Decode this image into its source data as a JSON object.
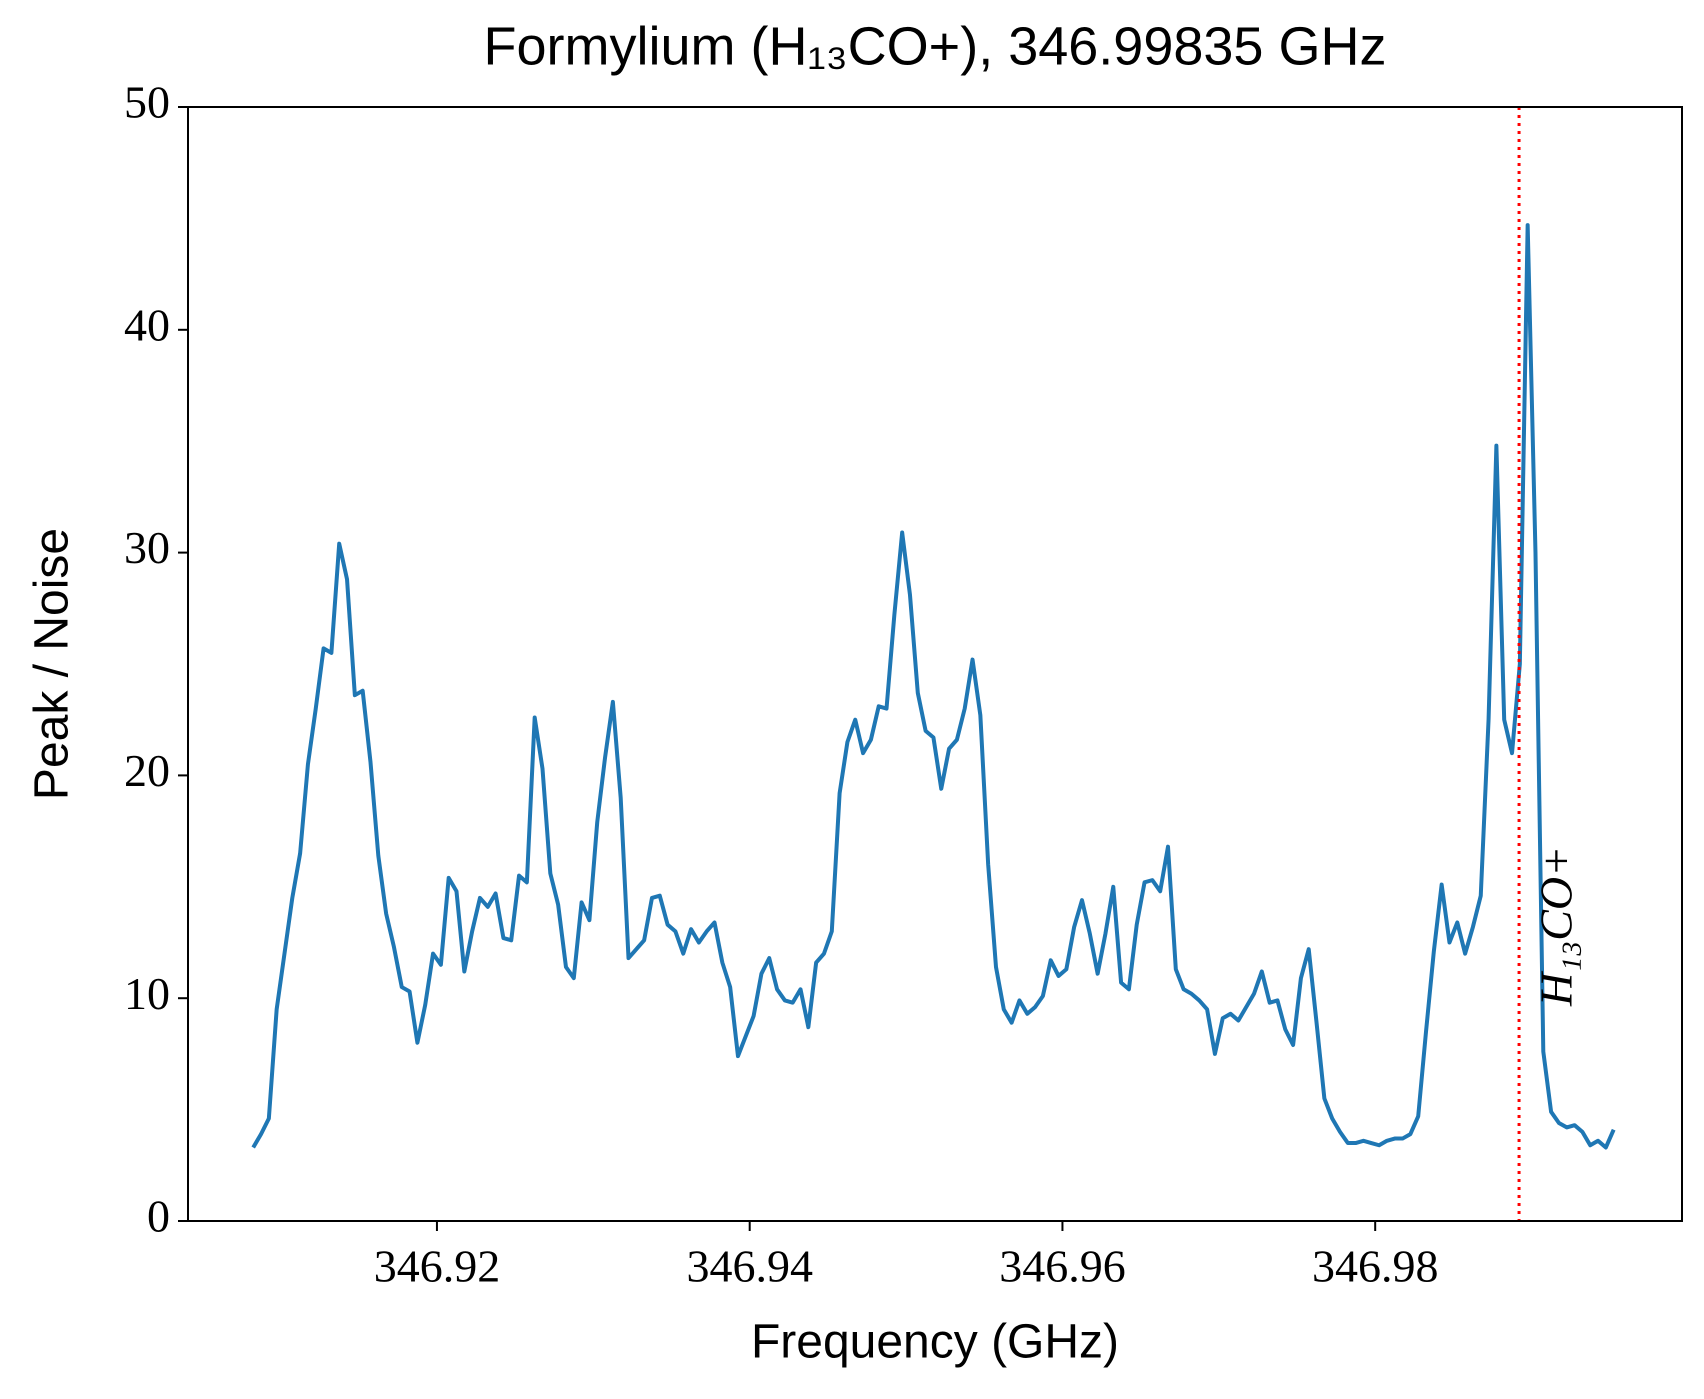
{
  "chart_data": {
    "type": "line",
    "title": "Formylium (H₁₃CO+), 346.99835 GHz",
    "xlabel": "Frequency (GHz)",
    "ylabel": "Peak / Noise",
    "color": "#1f77b4",
    "xlim": [
      346.90408,
      346.99962
    ],
    "ylim": [
      0,
      50
    ],
    "xticks": [
      346.92,
      346.94,
      346.96,
      346.98
    ],
    "yticks": [
      0,
      10,
      20,
      30,
      40,
      50
    ],
    "grid": false,
    "annotation": {
      "text": "H₁₃CO+",
      "x": 346.9892,
      "color": "#ff0000"
    },
    "x": [
      346.90825,
      346.90875,
      346.90925,
      346.90975,
      346.91025,
      346.91075,
      346.91125,
      346.91175,
      346.91225,
      346.91275,
      346.91325,
      346.91375,
      346.91425,
      346.91475,
      346.91525,
      346.91575,
      346.91625,
      346.91675,
      346.91725,
      346.91775,
      346.91825,
      346.91875,
      346.91925,
      346.91975,
      346.92025,
      346.92075,
      346.92125,
      346.92175,
      346.92225,
      346.92275,
      346.92325,
      346.92375,
      346.92425,
      346.92475,
      346.92525,
      346.92575,
      346.92625,
      346.92675,
      346.92725,
      346.92775,
      346.92825,
      346.92875,
      346.92925,
      346.92975,
      346.93025,
      346.93075,
      346.93125,
      346.93175,
      346.93225,
      346.93275,
      346.93325,
      346.93375,
      346.93425,
      346.93475,
      346.93525,
      346.93575,
      346.93625,
      346.93675,
      346.93725,
      346.93775,
      346.93825,
      346.93875,
      346.93925,
      346.93975,
      346.94025,
      346.94075,
      346.94125,
      346.94175,
      346.94225,
      346.94275,
      346.94325,
      346.94375,
      346.94425,
      346.94475,
      346.94525,
      346.94575,
      346.94625,
      346.94675,
      346.94725,
      346.94775,
      346.94825,
      346.94875,
      346.94925,
      346.94975,
      346.95025,
      346.95075,
      346.95125,
      346.95175,
      346.95225,
      346.95275,
      346.95325,
      346.95375,
      346.95425,
      346.95475,
      346.95525,
      346.95575,
      346.95625,
      346.95675,
      346.95725,
      346.95775,
      346.95825,
      346.95875,
      346.95925,
      346.95975,
      346.96025,
      346.96075,
      346.96125,
      346.96175,
      346.96225,
      346.96275,
      346.96325,
      346.96375,
      346.96425,
      346.96475,
      346.96525,
      346.96575,
      346.96625,
      346.96675,
      346.96725,
      346.96775,
      346.96825,
      346.96875,
      346.96925,
      346.96975,
      346.97025,
      346.97075,
      346.97125,
      346.97175,
      346.97225,
      346.97275,
      346.97325,
      346.97375,
      346.97425,
      346.97475,
      346.97525,
      346.97575,
      346.97625,
      346.97675,
      346.97725,
      346.97775,
      346.97825,
      346.97875,
      346.97925,
      346.97975,
      346.98025,
      346.98075,
      346.98125,
      346.98175,
      346.98225,
      346.98275,
      346.98325,
      346.98375,
      346.98425,
      346.98475,
      346.98525,
      346.98575,
      346.98625,
      346.98675,
      346.98725,
      346.98775,
      346.98825,
      346.98875,
      346.98925,
      346.98975,
      346.99025,
      346.99075,
      346.99125,
      346.99175,
      346.99225,
      346.99275,
      346.99325,
      346.99375,
      346.99425,
      346.99475,
      346.99525
    ],
    "values": [
      3.3,
      3.9,
      4.6,
      9.5,
      12.0,
      14.5,
      16.5,
      20.5,
      23.0,
      25.7,
      25.5,
      30.4,
      28.8,
      23.6,
      23.8,
      20.6,
      16.4,
      13.8,
      12.3,
      10.5,
      10.3,
      8.0,
      9.7,
      12.0,
      11.5,
      15.4,
      14.8,
      11.2,
      13.0,
      14.5,
      14.1,
      14.7,
      12.7,
      12.6,
      15.5,
      15.2,
      22.6,
      20.3,
      15.6,
      14.2,
      11.4,
      10.9,
      14.3,
      13.5,
      17.9,
      20.8,
      23.3,
      19.0,
      11.8,
      12.2,
      12.6,
      14.5,
      14.6,
      13.3,
      13.0,
      12.0,
      13.1,
      12.5,
      13.0,
      13.4,
      11.6,
      10.5,
      7.4,
      8.3,
      9.2,
      11.1,
      11.8,
      10.4,
      9.9,
      9.8,
      10.4,
      8.7,
      11.6,
      12.0,
      13.0,
      19.2,
      21.5,
      22.5,
      21.0,
      21.6,
      23.1,
      23.0,
      27.2,
      30.9,
      28.1,
      23.7,
      22.0,
      21.7,
      19.4,
      21.2,
      21.6,
      23.0,
      25.2,
      22.7,
      16.0,
      11.4,
      9.5,
      8.9,
      9.9,
      9.3,
      9.6,
      10.1,
      11.7,
      11.0,
      11.3,
      13.2,
      14.4,
      12.9,
      11.1,
      12.9,
      15.0,
      10.7,
      10.4,
      13.3,
      15.2,
      15.3,
      14.8,
      16.8,
      11.3,
      10.4,
      10.2,
      9.9,
      9.5,
      7.5,
      9.1,
      9.3,
      9.0,
      9.6,
      10.2,
      11.2,
      9.8,
      9.9,
      8.6,
      7.9,
      10.9,
      12.2,
      8.9,
      5.5,
      4.6,
      4.0,
      3.5,
      3.5,
      3.6,
      3.5,
      3.4,
      3.6,
      3.7,
      3.7,
      3.9,
      4.7,
      8.5,
      12.1,
      15.1,
      12.5,
      13.4,
      12.0,
      13.2,
      14.6,
      22.5,
      34.8,
      22.5,
      21.0,
      25.0,
      44.7,
      30.0,
      7.6,
      4.9,
      4.4,
      4.2,
      4.3,
      4.0,
      3.4,
      3.6,
      3.3,
      4.1
    ]
  }
}
